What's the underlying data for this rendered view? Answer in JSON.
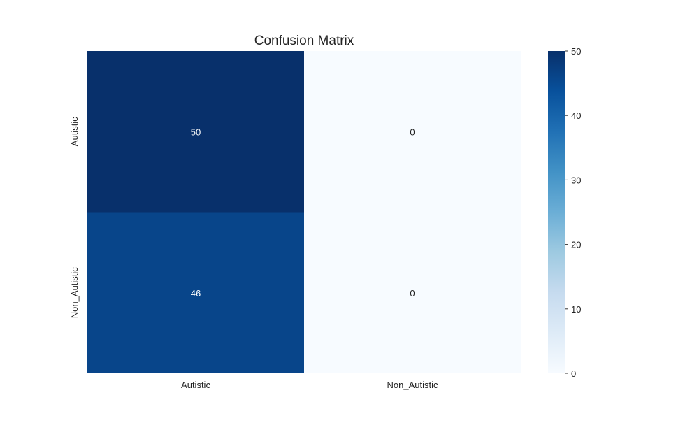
{
  "chart_data": {
    "type": "heatmap",
    "title": "Confusion Matrix",
    "xlabel": "",
    "ylabel": "",
    "x_categories": [
      "Autistic",
      "Non_Autistic"
    ],
    "y_categories": [
      "Autistic",
      "Non_Autistic"
    ],
    "values": [
      [
        50,
        0
      ],
      [
        46,
        0
      ]
    ],
    "annotations": [
      [
        "50",
        "0"
      ],
      [
        "46",
        "0"
      ]
    ],
    "colormap": "Blues",
    "colorbar": {
      "range": [
        0,
        50
      ],
      "ticks": [
        0,
        10,
        20,
        30,
        40,
        50
      ],
      "tick_labels": [
        "0",
        "10",
        "20",
        "30",
        "40",
        "50"
      ]
    },
    "grid": false,
    "colors": {
      "min": "#f7fbff",
      "max": "#08306b",
      "annotation_light": "#ffffff",
      "annotation_dark": "#222222"
    }
  }
}
